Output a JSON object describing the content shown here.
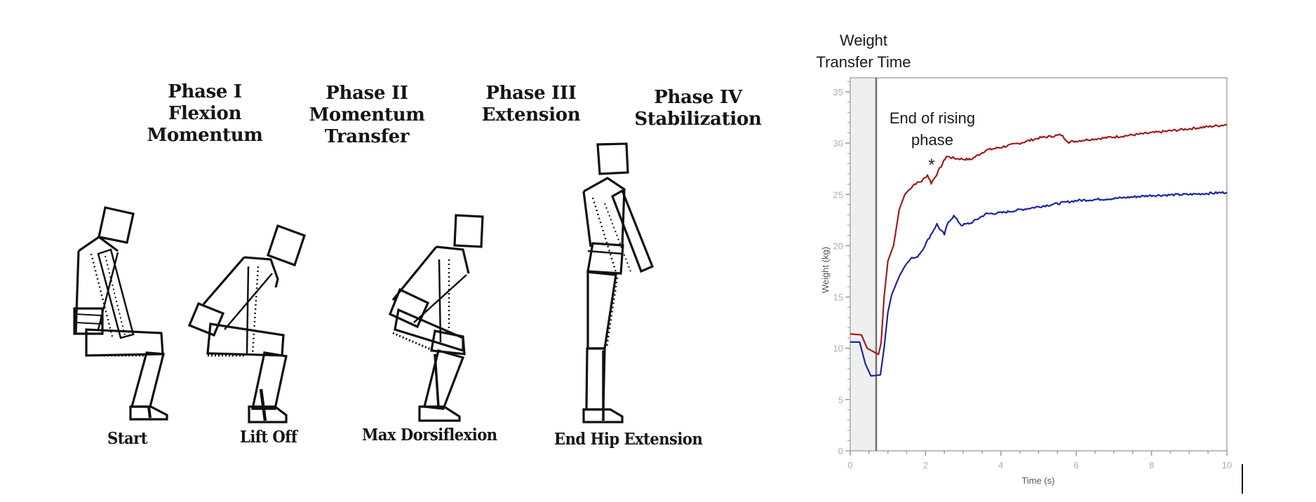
{
  "left_panel": {
    "phases": [
      {
        "lines": [
          "Phase I",
          "Flexion",
          "Momentum"
        ]
      },
      {
        "lines": [
          "Phase II",
          "Momentum",
          "Transfer"
        ]
      },
      {
        "lines": [
          "Phase III",
          "Extension"
        ]
      },
      {
        "lines": [
          "Phase IV",
          "Stabilization"
        ]
      }
    ],
    "events": [
      "Start",
      "Lift Off",
      "Max  Dorsiflexion",
      "End Hip Extension"
    ],
    "figures": [
      {
        "name": "seated-start"
      },
      {
        "name": "lift-off"
      },
      {
        "name": "max-dorsiflexion"
      },
      {
        "name": "standing-end-hip-extension"
      }
    ]
  },
  "right_panel": {
    "annotation_top_line1": "Weight",
    "annotation_top_line2": "Transfer Time",
    "annotation_inner_line1": "End of rising",
    "annotation_inner_line2": "phase",
    "asterisk": "*"
  },
  "chart_data": {
    "type": "line",
    "title": "",
    "xlabel": "Time (s)",
    "ylabel": "Weight (kg)",
    "xlim": [
      0,
      10
    ],
    "ylim": [
      0,
      35
    ],
    "xticks": [
      0,
      2,
      4,
      6,
      8,
      10
    ],
    "yticks": [
      0,
      5,
      10,
      15,
      20,
      25,
      30,
      35
    ],
    "grid": false,
    "legend": null,
    "shaded_region": {
      "x_start": 0,
      "x_end": 0.69,
      "color": "#eef0f0",
      "label": "Weight Transfer Time"
    },
    "vertical_line": {
      "x": 0.69,
      "color": "#707070"
    },
    "annotations": [
      {
        "text": "Weight Transfer Time",
        "x": 0.35,
        "y": 37.5
      },
      {
        "text": "End of rising phase",
        "x": 2.3,
        "y": 31.5
      },
      {
        "text": "*",
        "x": 2.1,
        "y": 27.6
      }
    ],
    "series": [
      {
        "name": "red-series",
        "color": "#a01c1e",
        "x": [
          0,
          0.3,
          0.45,
          0.65,
          0.75,
          0.82,
          0.9,
          1.0,
          1.15,
          1.3,
          1.45,
          1.7,
          1.9,
          2.05,
          2.15,
          2.3,
          2.45,
          2.55,
          2.8,
          3.2,
          3.6,
          4.0,
          4.5,
          5.0,
          5.6,
          5.8,
          6.2,
          7.0,
          8.0,
          9.0,
          10.0
        ],
        "values": [
          11.4,
          11.3,
          10.0,
          9.6,
          9.4,
          10.5,
          15.0,
          18.5,
          20.0,
          23.5,
          25.0,
          26.0,
          26.3,
          26.9,
          26.1,
          27.0,
          28.0,
          28.7,
          28.5,
          28.4,
          29.3,
          29.6,
          30.0,
          30.5,
          30.8,
          30.1,
          30.3,
          30.6,
          31.0,
          31.4,
          31.8
        ]
      },
      {
        "name": "blue-series",
        "color": "#1c25a2",
        "x": [
          0,
          0.25,
          0.4,
          0.55,
          0.8,
          0.9,
          1.0,
          1.1,
          1.3,
          1.45,
          1.6,
          1.75,
          1.9,
          2.1,
          2.3,
          2.4,
          2.5,
          2.6,
          2.75,
          2.95,
          3.2,
          3.6,
          4.0,
          5.0,
          6.0,
          7.0,
          8.0,
          9.0,
          10.0
        ],
        "values": [
          10.6,
          10.6,
          8.5,
          7.3,
          7.4,
          10.0,
          13.5,
          15.2,
          17.0,
          18.0,
          18.8,
          18.8,
          19.5,
          20.8,
          22.1,
          21.5,
          21.1,
          22.3,
          22.9,
          22.0,
          22.2,
          23.1,
          23.2,
          23.8,
          24.4,
          24.6,
          24.9,
          25.0,
          25.2
        ]
      }
    ]
  }
}
